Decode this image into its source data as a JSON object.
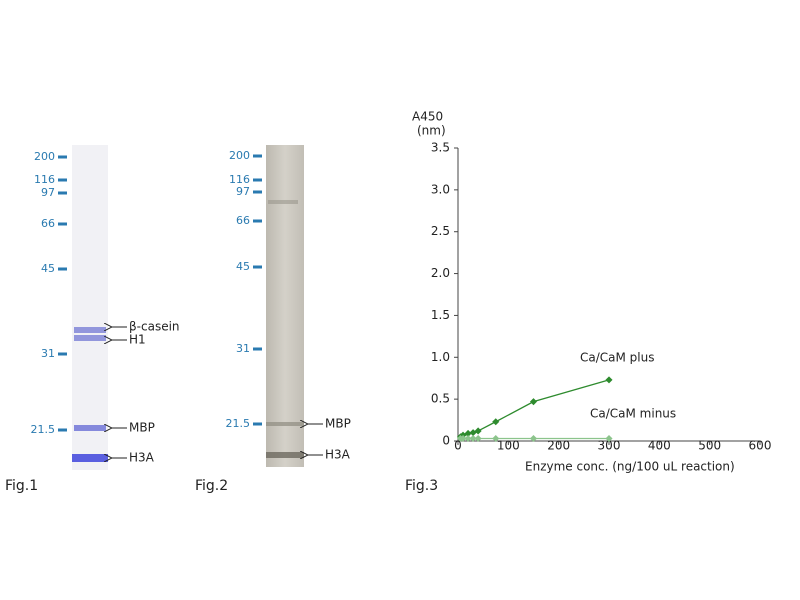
{
  "fig1": {
    "label": "Fig.1",
    "markers": [
      "200",
      "116",
      "97",
      "66",
      "45",
      "31",
      "21.5"
    ],
    "bands": [
      "β-casein",
      "H1",
      "MBP",
      "H3A"
    ]
  },
  "fig2": {
    "label": "Fig.2",
    "markers": [
      "200",
      "116",
      "97",
      "66",
      "45",
      "31",
      "21.5"
    ],
    "bands": [
      "MBP",
      "H3A"
    ]
  },
  "fig3": {
    "label": "Fig.3"
  },
  "chart_data": {
    "type": "line",
    "y_label": [
      "A450",
      "(nm)"
    ],
    "x_label": "Enzyme conc. (ng/100 uL reaction)",
    "x": [
      5,
      10,
      20,
      30,
      40,
      75,
      150,
      300
    ],
    "series": [
      {
        "name": "Ca/CaM plus",
        "color": "#2e8b2e",
        "values": [
          0.05,
          0.07,
          0.09,
          0.1,
          0.12,
          0.23,
          0.47,
          0.73
        ]
      },
      {
        "name": "Ca/CaM minus",
        "color": "#8cc48c",
        "values": [
          0.03,
          0.03,
          0.03,
          0.03,
          0.03,
          0.03,
          0.03,
          0.03
        ]
      }
    ],
    "xlim": [
      0,
      600
    ],
    "xticks": [
      0,
      100,
      200,
      300,
      400,
      500,
      600
    ],
    "ylim": [
      0,
      3.5
    ],
    "yticks": [
      0,
      0.5,
      {
        "value": 1,
        "label": "1.0"
      },
      1.5,
      {
        "value": 2,
        "label": "2.0"
      },
      2.5,
      {
        "value": 3,
        "label": "3.0"
      },
      3.5
    ],
    "grid": false
  }
}
